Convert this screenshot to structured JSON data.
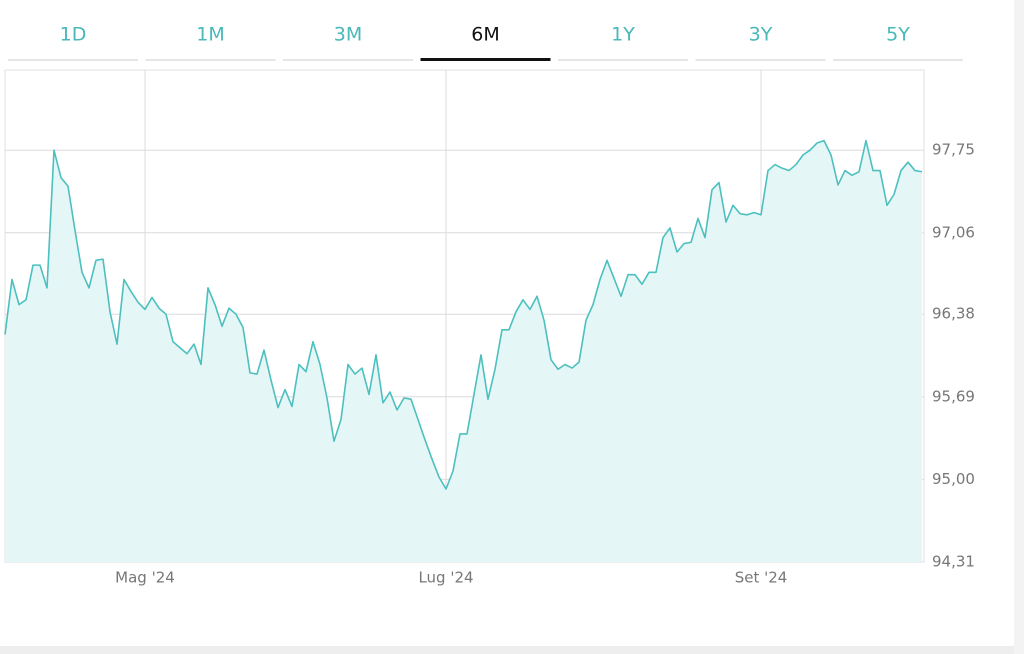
{
  "tabs": [
    {
      "label": "1D"
    },
    {
      "label": "1M"
    },
    {
      "label": "3M"
    },
    {
      "label": "6M",
      "selected": true
    },
    {
      "label": "1Y"
    },
    {
      "label": "3Y"
    },
    {
      "label": "5Y"
    }
  ],
  "chart_data": {
    "type": "area",
    "color": "#4cc0bf",
    "fill": "#e5f6f6",
    "grid": true,
    "y_axis_side": "right",
    "categories": [
      null,
      null,
      null,
      null,
      null,
      null,
      null,
      null,
      null,
      null,
      null,
      null,
      null,
      null,
      null,
      null,
      null,
      null,
      null,
      null,
      "Mag '24",
      null,
      null,
      null,
      null,
      null,
      null,
      null,
      null,
      null,
      null,
      null,
      null,
      null,
      null,
      null,
      null,
      null,
      null,
      null,
      null,
      null,
      null,
      null,
      null,
      null,
      null,
      null,
      null,
      null,
      null,
      null,
      null,
      null,
      null,
      null,
      null,
      null,
      null,
      null,
      null,
      null,
      null,
      "Lug '24",
      null,
      null,
      null,
      null,
      null,
      null,
      null,
      null,
      null,
      null,
      null,
      null,
      null,
      null,
      null,
      null,
      null,
      null,
      null,
      null,
      null,
      null,
      null,
      null,
      null,
      null,
      null,
      null,
      null,
      null,
      null,
      null,
      null,
      null,
      null,
      null,
      null,
      null,
      null,
      null,
      null,
      null,
      null,
      null,
      "Set '24",
      null,
      null,
      null,
      null,
      null,
      null,
      null,
      null,
      null,
      null,
      null,
      null,
      null,
      null,
      null,
      null,
      null,
      null,
      null,
      null,
      null,
      null,
      null
    ],
    "values": [
      96.21,
      96.67,
      96.46,
      96.5,
      96.79,
      96.79,
      96.6,
      97.75,
      97.52,
      97.45,
      97.08,
      96.73,
      96.6,
      96.83,
      96.84,
      96.4,
      96.13,
      96.67,
      96.57,
      96.48,
      96.42,
      96.52,
      96.43,
      96.38,
      96.15,
      96.1,
      96.05,
      96.13,
      95.96,
      96.6,
      96.46,
      96.28,
      96.43,
      96.38,
      96.27,
      95.89,
      95.88,
      96.08,
      95.83,
      95.6,
      95.75,
      95.61,
      95.96,
      95.9,
      96.15,
      95.96,
      95.68,
      95.32,
      95.5,
      95.96,
      95.88,
      95.93,
      95.71,
      96.04,
      95.64,
      95.73,
      95.58,
      95.68,
      95.67,
      95.5,
      95.33,
      95.17,
      95.02,
      94.92,
      95.07,
      95.38,
      95.38,
      95.71,
      96.04,
      95.67,
      95.92,
      96.25,
      96.25,
      96.4,
      96.5,
      96.42,
      96.53,
      96.33,
      96.0,
      95.92,
      95.96,
      95.93,
      95.98,
      96.33,
      96.46,
      96.67,
      96.83,
      96.68,
      96.53,
      96.71,
      96.71,
      96.63,
      96.73,
      96.73,
      97.02,
      97.1,
      96.9,
      96.97,
      96.98,
      97.18,
      97.02,
      97.42,
      97.48,
      97.15,
      97.29,
      97.22,
      97.21,
      97.23,
      97.21,
      97.58,
      97.63,
      97.6,
      97.58,
      97.63,
      97.71,
      97.75,
      97.81,
      97.83,
      97.71,
      97.46,
      97.58,
      97.54,
      97.57,
      97.83,
      97.58,
      97.58,
      97.29,
      97.38,
      97.58,
      97.65,
      97.58,
      97.57
    ],
    "ylim": [
      94.31,
      98.42
    ],
    "yticks": [
      {
        "value": 94.31,
        "label": "94,31"
      },
      {
        "value": 95.0,
        "label": "95,00"
      },
      {
        "value": 95.69,
        "label": "95,69"
      },
      {
        "value": 96.38,
        "label": "96,38"
      },
      {
        "value": 97.06,
        "label": "97,06"
      },
      {
        "value": 97.75,
        "label": "97,75"
      }
    ]
  }
}
